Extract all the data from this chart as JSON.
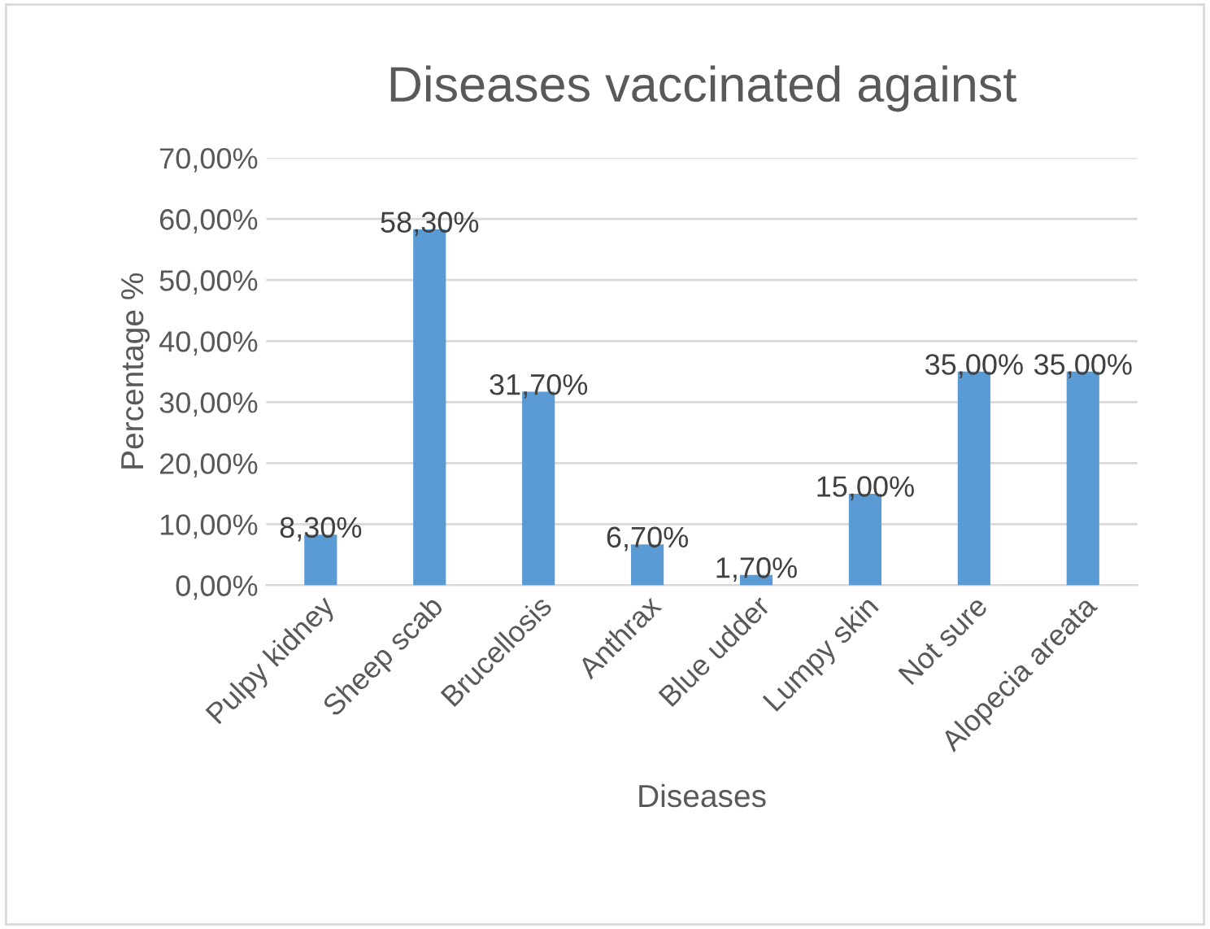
{
  "chart_data": {
    "type": "bar",
    "title": "Diseases vaccinated against",
    "xlabel": "Diseases",
    "ylabel": "Percentage %",
    "categories": [
      "Pulpy kidney",
      "Sheep scab",
      "Brucellosis",
      "Anthrax",
      "Blue udder",
      "Lumpy skin",
      "Not sure",
      "Alopecia areata"
    ],
    "values": [
      8.3,
      58.3,
      31.7,
      6.7,
      1.7,
      15.0,
      35.0,
      35.0
    ],
    "value_labels": [
      "8,30%",
      "58,30%",
      "31,70%",
      "6,70%",
      "1,70%",
      "15,00%",
      "35,00%",
      "35,00%"
    ],
    "color": "#5b9bd5",
    "ylim": [
      0,
      70
    ],
    "yticks": [
      {
        "value": 0,
        "label": "0,00%"
      },
      {
        "value": 10,
        "label": "10,00%"
      },
      {
        "value": 20,
        "label": "20,00%"
      },
      {
        "value": 30,
        "label": "30,00%"
      },
      {
        "value": 40,
        "label": "40,00%"
      },
      {
        "value": 50,
        "label": "50,00%"
      },
      {
        "value": 60,
        "label": "60,00%"
      },
      {
        "value": 70,
        "label": "70,00%"
      }
    ],
    "grid": "y"
  }
}
